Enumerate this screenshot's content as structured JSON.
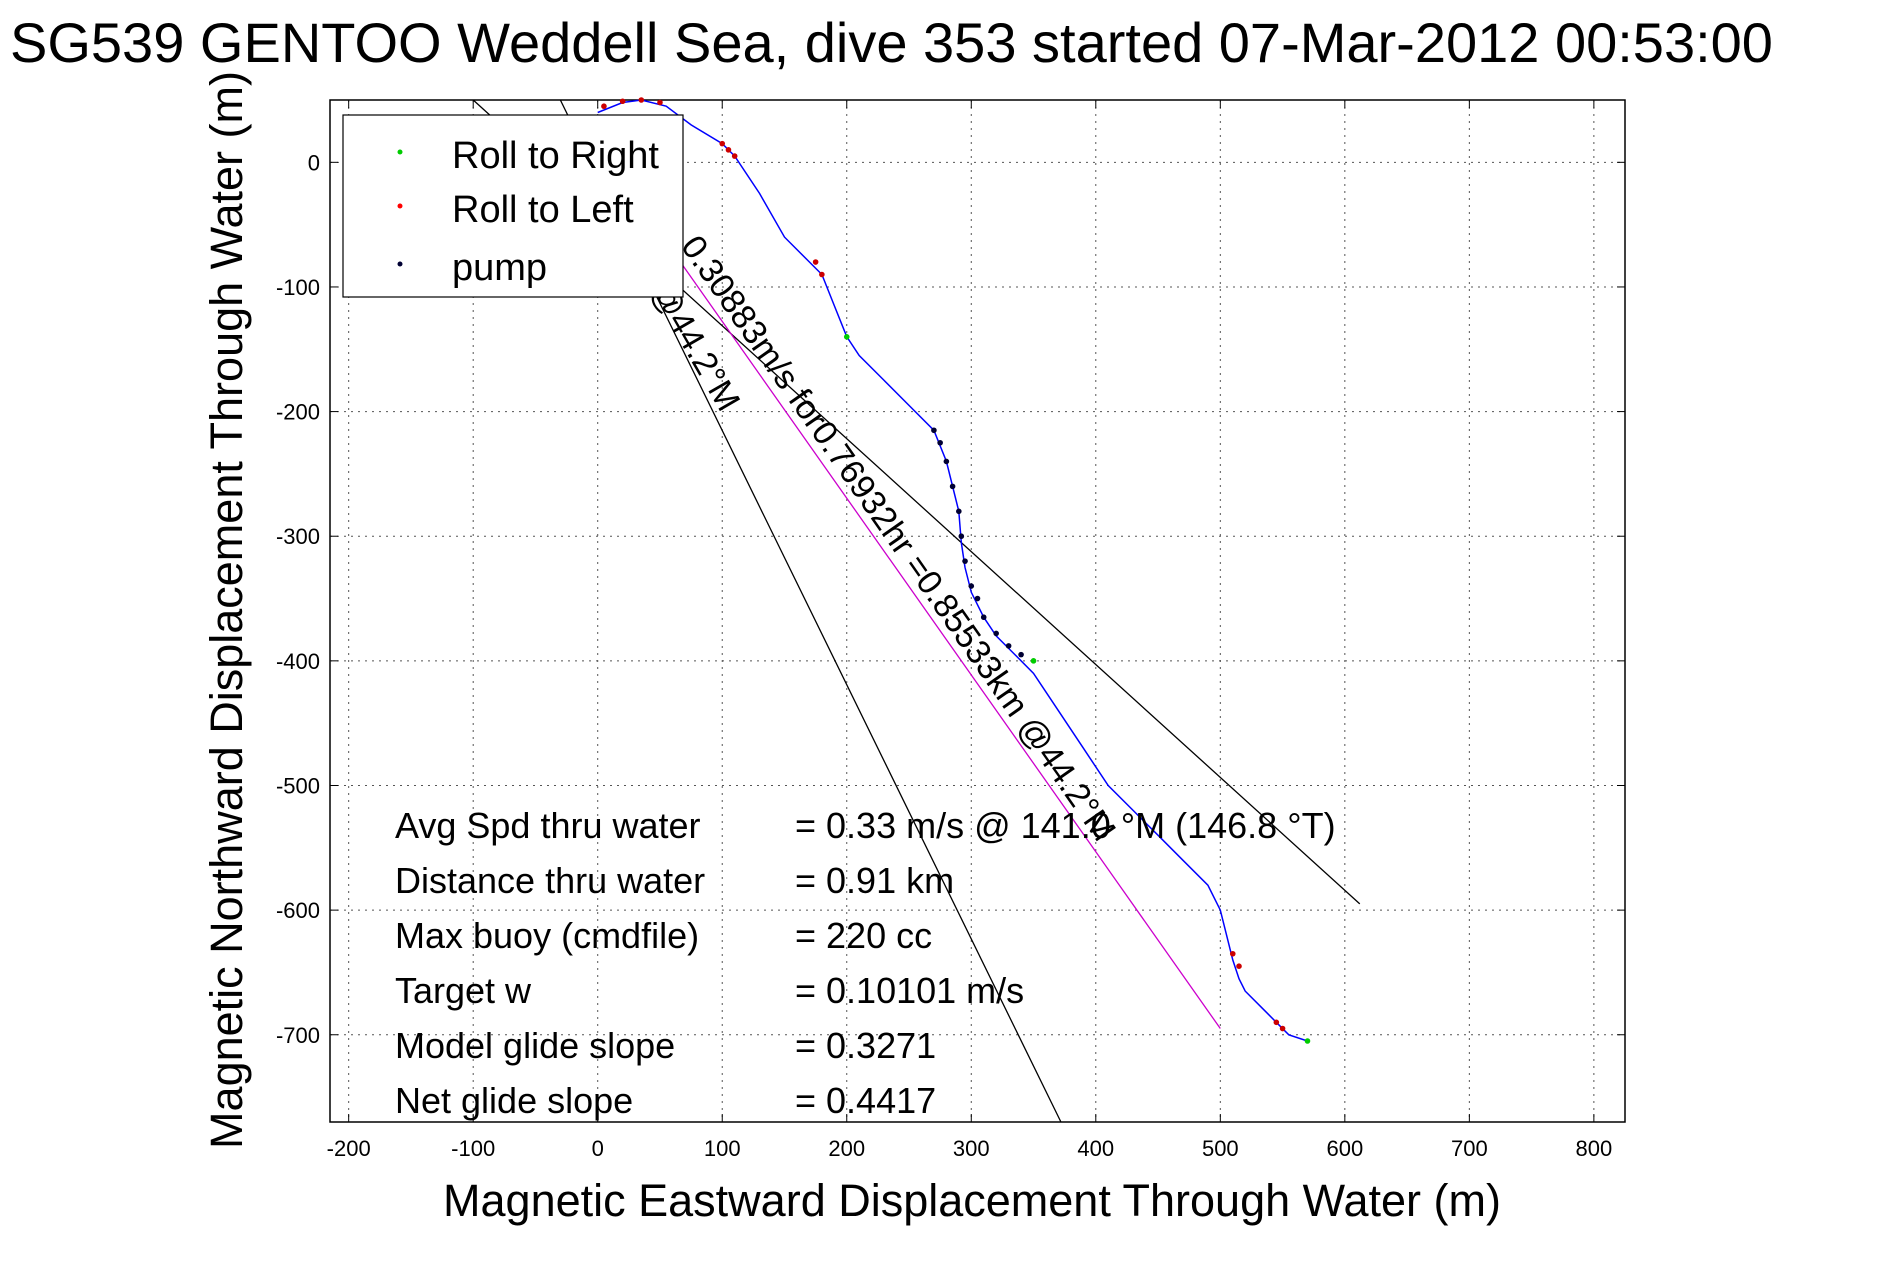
{
  "chart_data": {
    "type": "line",
    "title": "SG539 GENTOO Weddell Sea, dive 353 started 07-Mar-2012 00:53:00",
    "xlabel": "Magnetic Eastward Displacement Through Water (m)",
    "ylabel": "Magnetic Northward Displacement Through Water (m)",
    "xlim": [
      -215,
      825
    ],
    "ylim": [
      -770,
      50
    ],
    "xticks": [
      -200,
      -100,
      0,
      100,
      200,
      300,
      400,
      500,
      600,
      700,
      800
    ],
    "yticks": [
      0,
      -100,
      -200,
      -300,
      -400,
      -500,
      -600,
      -700
    ],
    "grid": true,
    "legend": {
      "placement": "top-left",
      "entries": [
        {
          "label": "Roll to Right",
          "color": "#00cc00"
        },
        {
          "label": "Roll to Left",
          "color": "#ff0000"
        },
        {
          "label": "pump",
          "color": "#000033"
        }
      ]
    },
    "track": {
      "name": "glider track",
      "color": "#0000ff",
      "x": [
        0,
        20,
        35,
        55,
        75,
        100,
        110,
        130,
        150,
        170,
        180,
        190,
        200,
        210,
        230,
        250,
        270,
        280,
        290,
        292,
        295,
        300,
        310,
        320,
        335,
        350,
        370,
        390,
        410,
        430,
        450,
        470,
        490,
        500,
        510,
        515,
        520,
        535,
        545,
        555,
        570
      ],
      "y": [
        40,
        48,
        50,
        45,
        30,
        15,
        5,
        -25,
        -60,
        -80,
        -90,
        -115,
        -140,
        -155,
        -175,
        -195,
        -215,
        -240,
        -280,
        -305,
        -325,
        -345,
        -365,
        -380,
        -395,
        -410,
        -440,
        -470,
        -500,
        -520,
        -540,
        -560,
        -580,
        -600,
        -640,
        -655,
        -665,
        -680,
        -690,
        -700,
        -705
      ]
    },
    "markers": {
      "roll_right": {
        "x": [
          200,
          350,
          570
        ],
        "y": [
          -140,
          -400,
          -705
        ]
      },
      "roll_left": {
        "x": [
          5,
          20,
          35,
          50,
          100,
          105,
          110,
          175,
          180,
          510,
          515,
          545,
          550
        ],
        "y": [
          45,
          49,
          50,
          48,
          15,
          10,
          5,
          -80,
          -90,
          -635,
          -645,
          -690,
          -695
        ]
      },
      "pump": {
        "x": [
          270,
          275,
          280,
          285,
          290,
          292,
          295,
          300,
          305,
          310,
          320,
          330,
          340
        ],
        "y": [
          -215,
          -225,
          -240,
          -260,
          -280,
          -300,
          -320,
          -340,
          -350,
          -365,
          -378,
          -388,
          -395
        ]
      }
    },
    "reference_lines": [
      {
        "name": "avg speed direction",
        "color": "#000000",
        "x": [
          -100,
          612
        ],
        "y": [
          50,
          -595
        ]
      },
      {
        "name": "net direction",
        "color": "#000000",
        "x": [
          -30,
          372
        ],
        "y": [
          50,
          -770
        ]
      },
      {
        "name": "model track",
        "color": "#cc00cc",
        "x": [
          10,
          500
        ],
        "y": [
          0,
          -695
        ]
      }
    ],
    "track_label": "0.30883m/s for0.76932hr =0.85533km @44.2°M",
    "heading_label": "@44.2°M",
    "annotations": [
      {
        "label": "Avg Spd thru water",
        "value": "=  0.33 m/s @ 141.0 °M (146.8 °T)"
      },
      {
        "label": "Distance thru water",
        "value": "=  0.91 km"
      },
      {
        "label": "Max buoy (cmdfile)",
        "value": "= 220 cc"
      },
      {
        "label": "Target w",
        "value": "= 0.10101 m/s"
      },
      {
        "label": "Model glide slope",
        "value": "= 0.3271"
      },
      {
        "label": "Net glide slope",
        "value": "= 0.4417"
      }
    ]
  }
}
